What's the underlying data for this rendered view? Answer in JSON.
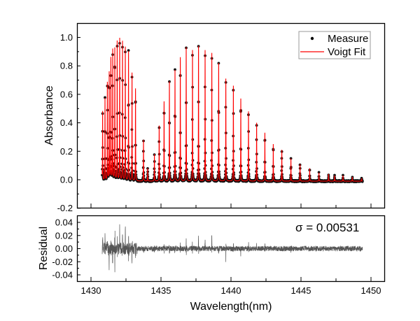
{
  "chart_data": [
    {
      "type": "scatter",
      "panel": "main",
      "xlabel": "",
      "ylabel": "Absorbance",
      "xlim": [
        1429,
        1450.9
      ],
      "ylim": [
        -0.2,
        1.08
      ],
      "yticks": [
        "-0.2",
        "0.0",
        "0.2",
        "0.4",
        "0.6",
        "0.8",
        "1.0"
      ],
      "yticks_values": [
        -0.2,
        0,
        0.2,
        0.4,
        0.6,
        0.8,
        1.0
      ],
      "xticks_values": [
        1430,
        1435,
        1440,
        1445,
        1450
      ],
      "grid": false,
      "legend": {
        "position": "top-right",
        "entries": [
          "Measure",
          "Voigt Fit"
        ]
      },
      "series": [
        {
          "name": "Measure",
          "style": "markers",
          "color": "#000000"
        },
        {
          "name": "Voigt Fit",
          "style": "line",
          "color": "#ff0000"
        }
      ],
      "x_range_of_data": [
        1430.8,
        1449.4
      ],
      "peaks": {
        "wavelength_nm": [
          1430.83,
          1431.0,
          1431.17,
          1431.3,
          1431.42,
          1431.55,
          1431.7,
          1431.87,
          1432.05,
          1432.25,
          1432.45,
          1432.68,
          1432.93,
          1433.18,
          1433.75,
          1434.05,
          1434.53,
          1434.87,
          1435.22,
          1435.6,
          1436.0,
          1436.38,
          1436.8,
          1437.25,
          1437.68,
          1438.15,
          1438.63,
          1439.12,
          1439.63,
          1440.17,
          1440.7,
          1441.25,
          1441.83,
          1442.42,
          1443.02,
          1443.63,
          1444.28,
          1444.93,
          1445.62,
          1446.28,
          1446.97,
          1447.4,
          1448.0,
          1448.67,
          1449.33
        ],
        "absorbance": [
          0.49,
          0.58,
          0.69,
          0.76,
          0.86,
          0.92,
          0.93,
          0.98,
          1.0,
          0.98,
          0.94,
          0.91,
          0.76,
          0.65,
          0.29,
          0.09,
          0.19,
          0.39,
          0.56,
          0.7,
          0.78,
          0.87,
          0.94,
          0.92,
          0.95,
          0.92,
          0.9,
          0.83,
          0.72,
          0.67,
          0.58,
          0.49,
          0.41,
          0.34,
          0.26,
          0.22,
          0.16,
          0.12,
          0.09,
          0.06,
          0.05,
          0.04,
          0.04,
          0.03,
          0.02
        ]
      }
    },
    {
      "type": "line",
      "panel": "residual",
      "xlabel": "Wavelength(nm)",
      "ylabel": "Residual",
      "xlim": [
        1429,
        1450.9
      ],
      "ylim": [
        -0.05,
        0.05
      ],
      "xticks": [
        "1430",
        "1435",
        "1440",
        "1445",
        "1450"
      ],
      "xticks_values": [
        1430,
        1435,
        1440,
        1445,
        1450
      ],
      "yticks": [
        "0.04",
        "0.02",
        "0.00",
        "-0.02",
        "-0.04"
      ],
      "yticks_values": [
        0.04,
        0.02,
        0,
        -0.02,
        -0.04
      ],
      "grid": false,
      "color": "#555555",
      "residual_extent": [
        -0.036,
        0.037
      ],
      "annotation": "σ = 0.00531"
    }
  ]
}
